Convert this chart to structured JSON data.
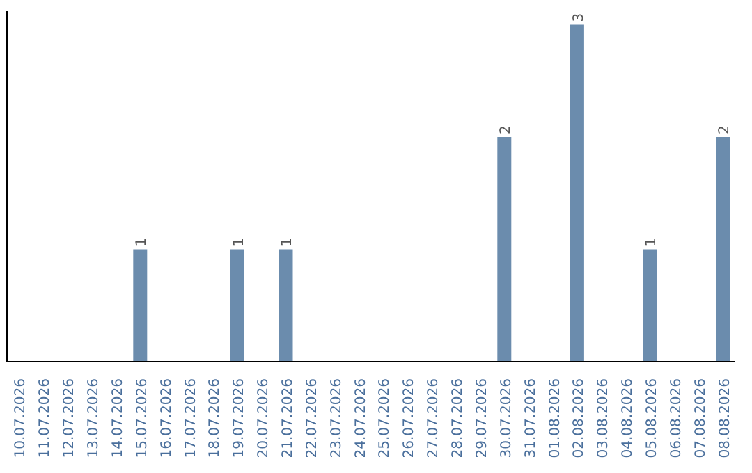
{
  "chart_data": {
    "type": "bar",
    "categories": [
      "10.07.2026",
      "11.07.2026",
      "12.07.2026",
      "13.07.2026",
      "14.07.2026",
      "15.07.2026",
      "16.07.2026",
      "17.07.2026",
      "18.07.2026",
      "19.07.2026",
      "20.07.2026",
      "21.07.2026",
      "22.07.2026",
      "23.07.2026",
      "24.07.2026",
      "25.07.2026",
      "26.07.2026",
      "27.07.2026",
      "28.07.2026",
      "29.07.2026",
      "30.07.2026",
      "31.07.2026",
      "01.08.2026",
      "02.08.2026",
      "03.08.2026",
      "04.08.2026",
      "05.08.2026",
      "06.08.2026",
      "07.08.2026",
      "08.08.2026"
    ],
    "values": [
      0,
      0,
      0,
      0,
      0,
      1,
      0,
      0,
      0,
      1,
      0,
      1,
      0,
      0,
      0,
      0,
      0,
      0,
      0,
      0,
      2,
      0,
      0,
      3,
      0,
      0,
      1,
      0,
      0,
      2
    ],
    "color": "#6b8cad",
    "value_labels": [
      null,
      null,
      null,
      null,
      null,
      "1",
      null,
      null,
      null,
      "1",
      null,
      "1",
      null,
      null,
      null,
      null,
      null,
      null,
      null,
      null,
      "2",
      null,
      null,
      "3",
      null,
      null,
      "1",
      null,
      null,
      "2"
    ],
    "tick_labels": "x"
  }
}
